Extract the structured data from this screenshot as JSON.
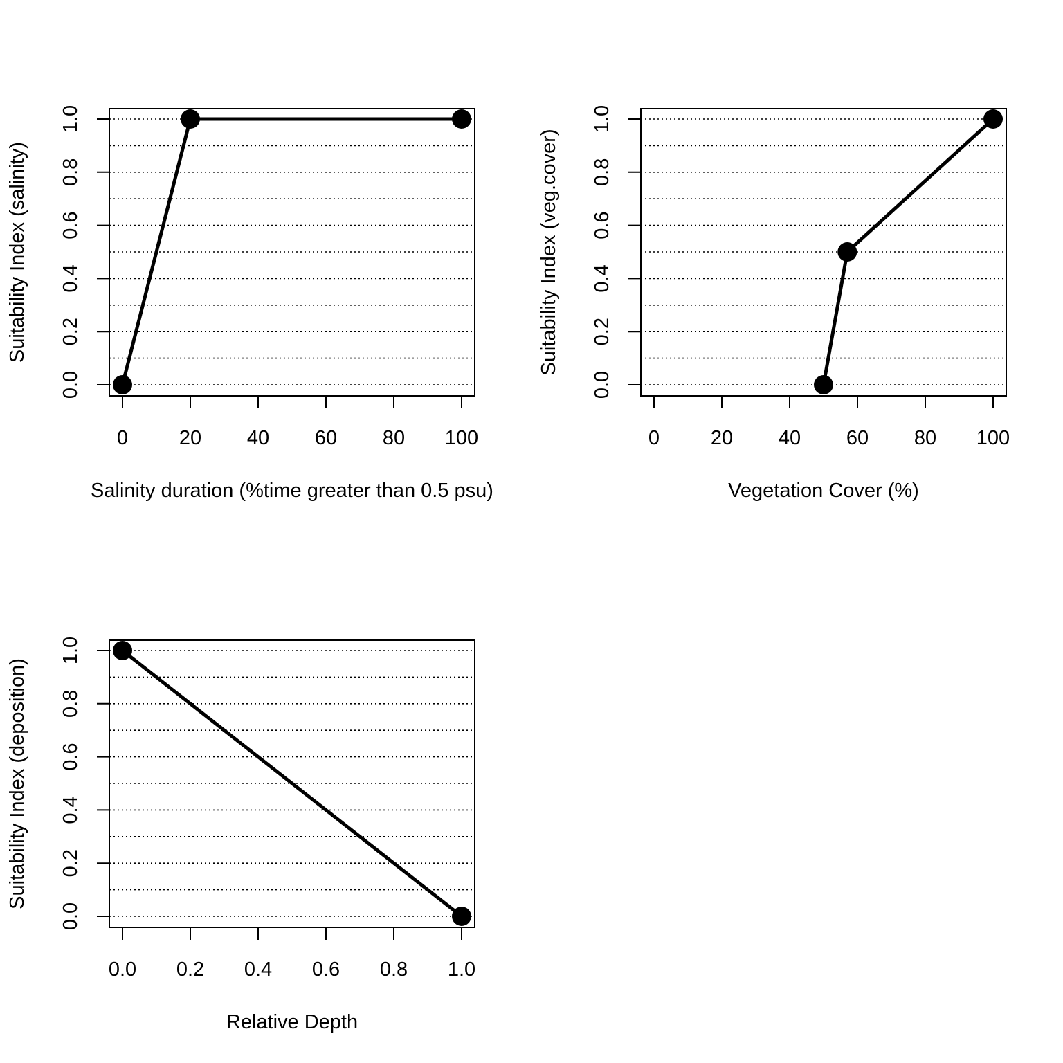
{
  "chart_data": [
    {
      "type": "line",
      "xlabel": "Salinity duration (%time greater than 0.5 psu)",
      "ylabel": "Suitability Index (salinity)",
      "xlim": [
        0,
        100
      ],
      "ylim": [
        0,
        1
      ],
      "xticks": [
        "0",
        "20",
        "40",
        "60",
        "80",
        "100"
      ],
      "yticks": [
        "0.0",
        "0.2",
        "0.4",
        "0.6",
        "0.8",
        "1.0"
      ],
      "gridlines_y": [
        0,
        0.1,
        0.2,
        0.3,
        0.4,
        0.5,
        0.6,
        0.7,
        0.8,
        0.9,
        1.0
      ],
      "grid": "horizontal dotted",
      "series": [
        {
          "x": [
            0,
            20,
            100
          ],
          "y": [
            0,
            1,
            1
          ]
        }
      ]
    },
    {
      "type": "line",
      "xlabel": "Vegetation Cover (%)",
      "ylabel": "Suitability Index (veg.cover)",
      "xlim": [
        0,
        100
      ],
      "ylim": [
        0,
        1
      ],
      "xticks": [
        "0",
        "20",
        "40",
        "60",
        "80",
        "100"
      ],
      "yticks": [
        "0.0",
        "0.2",
        "0.4",
        "0.6",
        "0.8",
        "1.0"
      ],
      "gridlines_y": [
        0,
        0.1,
        0.2,
        0.3,
        0.4,
        0.5,
        0.6,
        0.7,
        0.8,
        0.9,
        1.0
      ],
      "grid": "horizontal dotted",
      "series": [
        {
          "x": [
            50,
            57,
            100
          ],
          "y": [
            0,
            0.5,
            1
          ]
        }
      ]
    },
    {
      "type": "line",
      "xlabel": "Relative Depth",
      "ylabel": "Suitability Index (deposition)",
      "xlim": [
        0,
        1
      ],
      "ylim": [
        0,
        1
      ],
      "xticks": [
        "0.0",
        "0.2",
        "0.4",
        "0.6",
        "0.8",
        "1.0"
      ],
      "yticks": [
        "0.0",
        "0.2",
        "0.4",
        "0.6",
        "0.8",
        "1.0"
      ],
      "gridlines_y": [
        0,
        0.1,
        0.2,
        0.3,
        0.4,
        0.5,
        0.6,
        0.7,
        0.8,
        0.9,
        1.0
      ],
      "grid": "horizontal dotted",
      "series": [
        {
          "x": [
            0,
            1
          ],
          "y": [
            1,
            0
          ]
        }
      ]
    }
  ]
}
